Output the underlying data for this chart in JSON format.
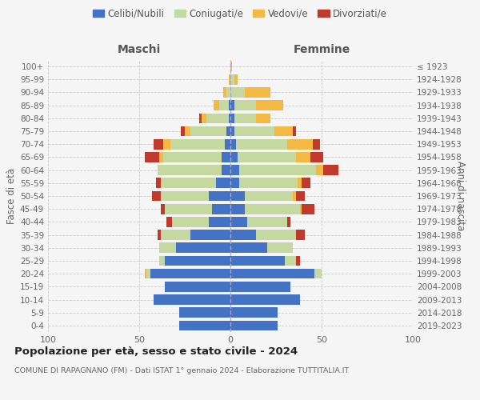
{
  "age_groups": [
    "100+",
    "95-99",
    "90-94",
    "85-89",
    "80-84",
    "75-79",
    "70-74",
    "65-69",
    "60-64",
    "55-59",
    "50-54",
    "45-49",
    "40-44",
    "35-39",
    "30-34",
    "25-29",
    "20-24",
    "15-19",
    "10-14",
    "5-9",
    "0-4"
  ],
  "birth_years": [
    "≤ 1923",
    "1924-1928",
    "1929-1933",
    "1934-1938",
    "1939-1943",
    "1944-1948",
    "1949-1953",
    "1954-1958",
    "1959-1963",
    "1964-1968",
    "1969-1973",
    "1974-1978",
    "1979-1983",
    "1984-1988",
    "1989-1993",
    "1994-1998",
    "1999-2003",
    "2004-2008",
    "2009-2013",
    "2014-2018",
    "2019-2023"
  ],
  "colors": {
    "celibi": "#4472c4",
    "coniugati": "#c5d8a0",
    "vedovi": "#f4b942",
    "divorziati": "#c0392b"
  },
  "maschi": {
    "celibi": [
      0,
      0,
      0,
      1,
      1,
      2,
      3,
      5,
      5,
      8,
      12,
      10,
      12,
      22,
      30,
      36,
      44,
      36,
      42,
      28,
      28
    ],
    "coniugati": [
      0,
      0,
      2,
      5,
      12,
      20,
      30,
      32,
      35,
      30,
      26,
      26,
      20,
      16,
      9,
      3,
      2,
      0,
      0,
      0,
      0
    ],
    "vedovi": [
      0,
      1,
      2,
      3,
      3,
      3,
      4,
      2,
      0,
      0,
      0,
      0,
      0,
      0,
      0,
      0,
      1,
      0,
      0,
      0,
      0
    ],
    "divorziati": [
      0,
      0,
      0,
      0,
      1,
      2,
      5,
      8,
      0,
      3,
      5,
      2,
      3,
      2,
      0,
      0,
      0,
      0,
      0,
      0,
      0
    ]
  },
  "femmine": {
    "celibi": [
      0,
      0,
      0,
      2,
      2,
      2,
      3,
      4,
      5,
      5,
      8,
      8,
      9,
      14,
      20,
      30,
      46,
      33,
      38,
      26,
      26
    ],
    "coniugati": [
      0,
      2,
      8,
      12,
      12,
      22,
      28,
      32,
      42,
      32,
      26,
      30,
      22,
      22,
      14,
      6,
      4,
      0,
      0,
      0,
      0
    ],
    "vedovi": [
      1,
      2,
      14,
      15,
      8,
      10,
      14,
      8,
      4,
      2,
      2,
      1,
      0,
      0,
      0,
      0,
      0,
      0,
      0,
      0,
      0
    ],
    "divorziati": [
      0,
      0,
      0,
      0,
      0,
      2,
      4,
      7,
      8,
      5,
      5,
      7,
      2,
      5,
      0,
      2,
      0,
      0,
      0,
      0,
      0
    ]
  },
  "title": "Popolazione per età, sesso e stato civile - 2024",
  "subtitle": "COMUNE DI RAPAGNANO (FM) - Dati ISTAT 1° gennaio 2024 - Elaborazione TUTTITALIA.IT",
  "header_left": "Maschi",
  "header_right": "Femmine",
  "ylabel_left": "Fasce di età",
  "ylabel_right": "Anni di nascita",
  "legend_labels": [
    "Celibi/Nubili",
    "Coniugati/e",
    "Vedovi/e",
    "Divorziati/e"
  ],
  "xlim": 100,
  "bg": "#f5f5f5"
}
